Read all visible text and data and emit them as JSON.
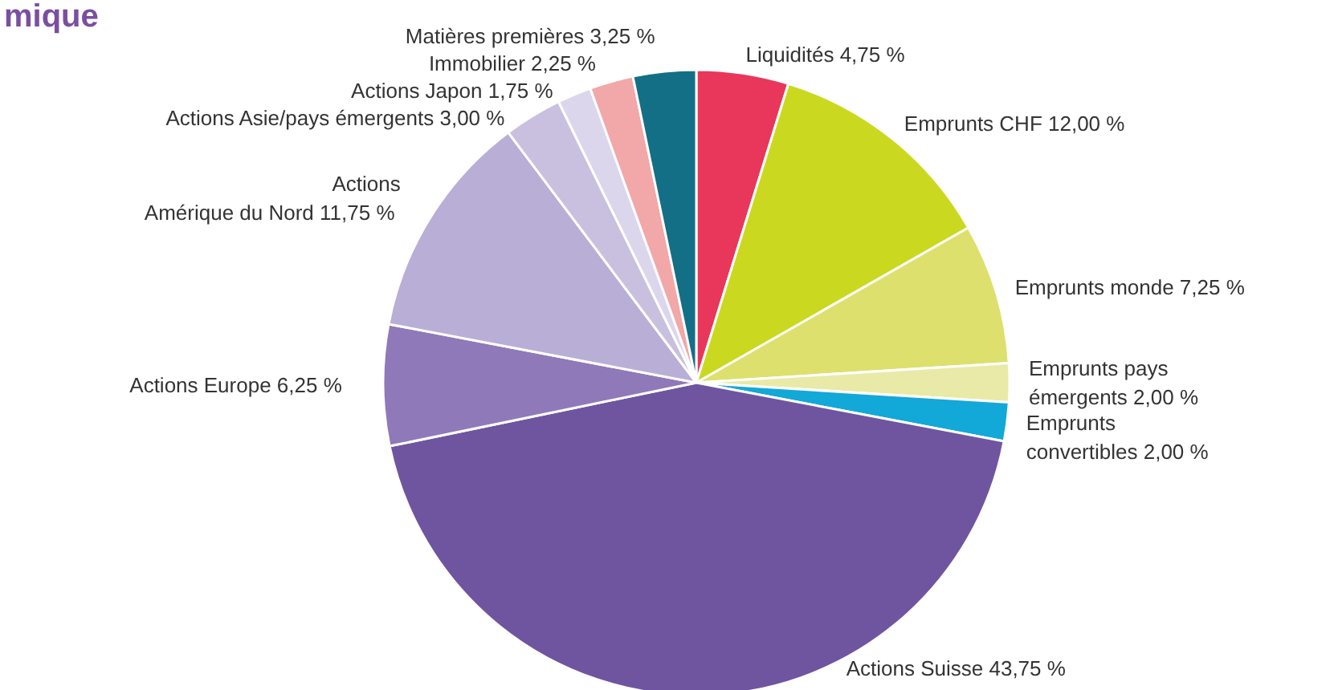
{
  "chart_data": {
    "type": "pie",
    "title": "mique",
    "categories": [
      "Liquidités",
      "Emprunts CHF",
      "Emprunts monde",
      "Emprunts pays\némergents",
      "Emprunts\nconvertibles",
      "Actions Suisse",
      "Actions Europe",
      "Actions\nAmérique du Nord",
      "Actions Asie/pays émergents",
      "Actions Japon",
      "Immobilier",
      "Matières premières"
    ],
    "values": [
      4.75,
      12.0,
      7.25,
      2.0,
      2.0,
      43.75,
      6.25,
      11.75,
      3.0,
      1.75,
      2.25,
      3.25
    ],
    "value_labels": [
      "4,75 %",
      "12,00 %",
      "7,25 %",
      "2,00 %",
      "2,00 %",
      "43,75 %",
      "6,25 %",
      "11,75 %",
      "3,00 %",
      "1,75 %",
      "2,25 %",
      "3,25 %"
    ],
    "colors": [
      "#e8375a",
      "#cbd820",
      "#dde06c",
      "#e9eaa8",
      "#12a8d8",
      "#6f55a0",
      "#8f79b8",
      "#b8aed6",
      "#c9c0e0",
      "#dcd6ec",
      "#f2a7a8",
      "#136f86"
    ]
  }
}
